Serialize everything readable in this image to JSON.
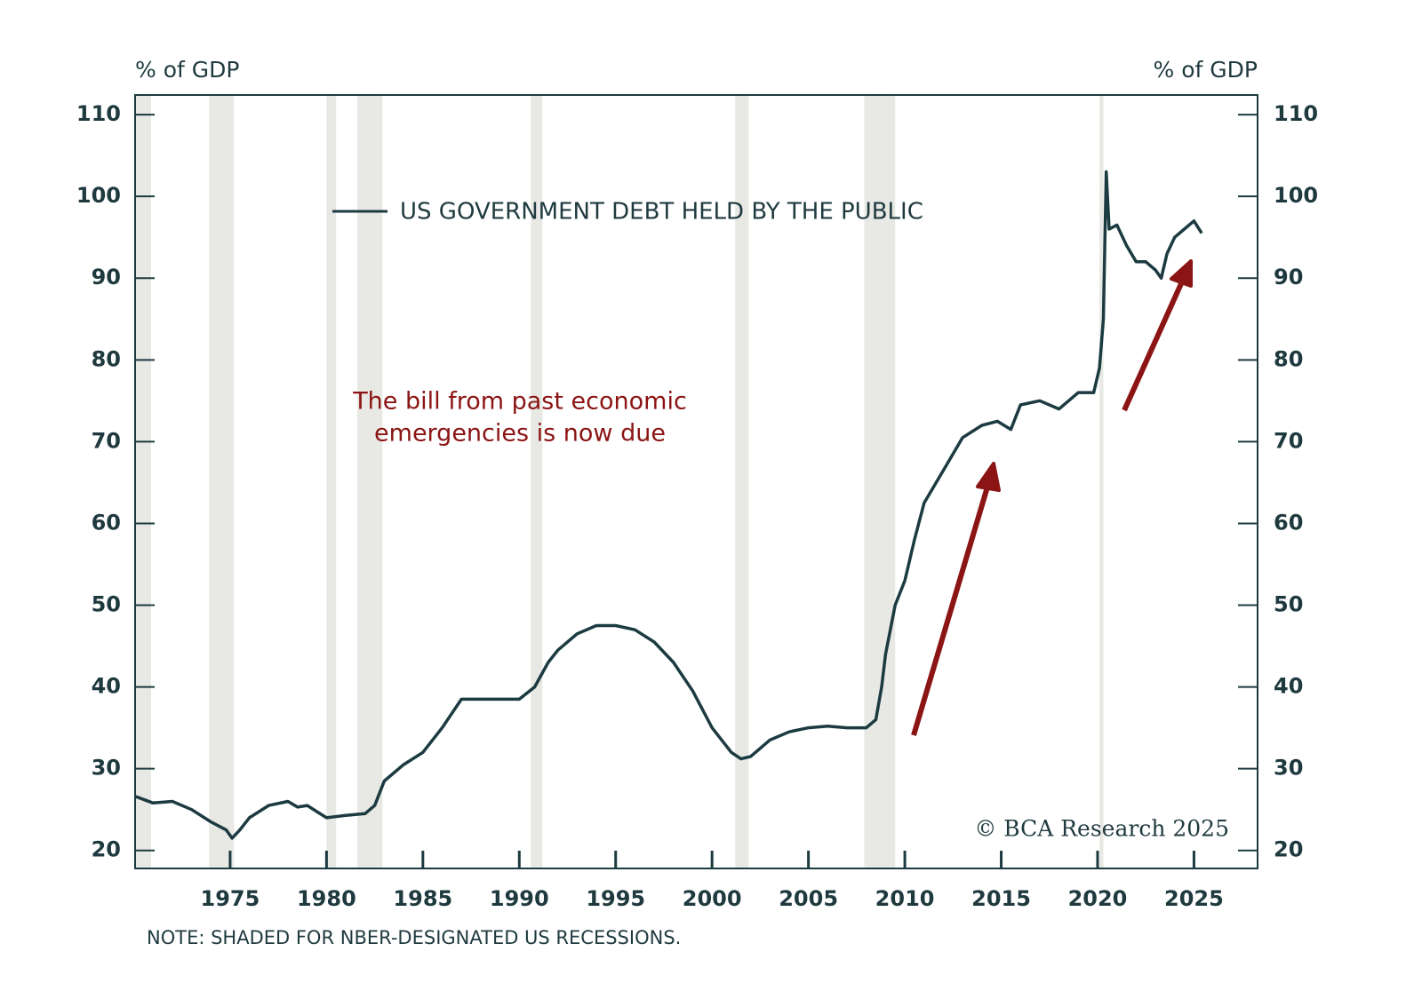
{
  "chart_data": {
    "type": "line",
    "y_label": "% of GDP",
    "y2_label": "% of GDP",
    "annotation": [
      "The bill from past economic",
      "emergencies is now due"
    ],
    "note": "NOTE: SHADED FOR NBER-DESIGNATED US RECESSIONS.",
    "source": "© BCA Research 2025",
    "x": [
      1970.1,
      1971,
      1972,
      1973,
      1974,
      1974.8,
      1975.1,
      1975.5,
      1976,
      1977,
      1978,
      1978.5,
      1979,
      1980,
      1981,
      1982,
      1982.5,
      1983,
      1984,
      1985,
      1986,
      1987,
      1988,
      1989,
      1990,
      1990.8,
      1991.5,
      1992,
      1993,
      1994,
      1995,
      1996,
      1997,
      1998,
      1999,
      2000,
      2001,
      2001.5,
      2002,
      2003,
      2004,
      2005,
      2006,
      2007,
      2008,
      2008.5,
      2008.8,
      2009,
      2009.5,
      2010,
      2010.5,
      2011,
      2012,
      2013,
      2014,
      2014.8,
      2015.5,
      2016,
      2017,
      2018,
      2019,
      2019.8,
      2020.1,
      2020.3,
      2020.45,
      2020.6,
      2021,
      2021.5,
      2022,
      2022.5,
      2023,
      2023.3,
      2023.6,
      2024,
      2024.5,
      2025,
      2025.4
    ],
    "series": [
      {
        "name": "US GOVERNMENT DEBT HELD BY THE PUBLIC",
        "color": "#1c3b41",
        "values": [
          26.6,
          25.8,
          26.0,
          25,
          23.5,
          22.5,
          21.5,
          22.5,
          24,
          25.5,
          26,
          25.3,
          25.5,
          24,
          24.3,
          24.5,
          25.5,
          28.5,
          30.5,
          32,
          35,
          38.5,
          38.5,
          38.5,
          38.5,
          40,
          43,
          44.5,
          46.5,
          47.5,
          47.5,
          47,
          45.5,
          43,
          39.5,
          35,
          32,
          31.2,
          31.5,
          33.5,
          34.5,
          35,
          35.2,
          35,
          35,
          36,
          40,
          44,
          50,
          53,
          58,
          62.5,
          66.5,
          70.5,
          72,
          72.5,
          71.5,
          74.5,
          75,
          74,
          76,
          76,
          79,
          85,
          103,
          96,
          96.5,
          94,
          92,
          92,
          91,
          90,
          93,
          95,
          96,
          97,
          95.5
        ]
      }
    ],
    "recessions": [
      [
        1970.07,
        1970.9
      ],
      [
        1973.9,
        1975.2
      ],
      [
        1980.0,
        1980.5
      ],
      [
        1981.6,
        1982.9
      ],
      [
        1990.6,
        1991.2
      ],
      [
        2001.2,
        2001.9
      ],
      [
        2007.9,
        2009.5
      ],
      [
        2020.1,
        2020.3
      ]
    ],
    "recession_color": "#e8e8e4",
    "xlim": [
      1970.07,
      2028.3
    ],
    "xticks": [
      1975,
      1980,
      1985,
      1990,
      1995,
      2000,
      2005,
      2010,
      2015,
      2020,
      2025
    ],
    "ylim": [
      17.8,
      112.4
    ],
    "yticks": [
      20,
      30,
      40,
      50,
      60,
      70,
      80,
      90,
      100,
      110
    ],
    "y2lim": [
      17.8,
      112.4
    ],
    "y2ticks": [
      20,
      30,
      40,
      50,
      60,
      70,
      80,
      90,
      100,
      110
    ],
    "grid": false
  }
}
